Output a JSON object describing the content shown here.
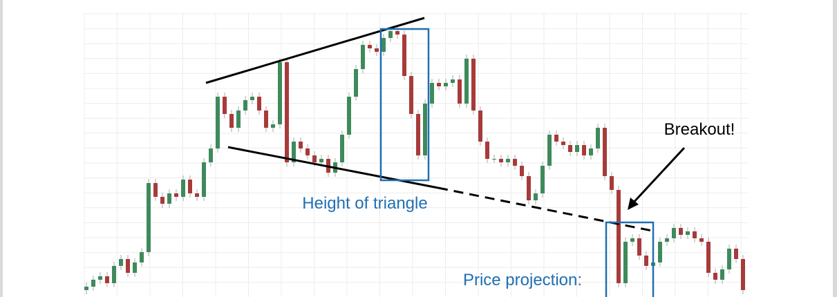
{
  "chart_data": {
    "type": "candlestick",
    "annotations": {
      "breakout": "Breakout!",
      "height": "Height of triangle",
      "projection": "Price projection:"
    },
    "ylim": [
      0,
      430
    ],
    "grid": true,
    "up_color": "#3e8a5c",
    "down_color": "#a83a3a",
    "open": [
      10,
      15,
      25,
      30,
      20,
      45,
      55,
      35,
      50,
      65,
      165,
      145,
      135,
      150,
      145,
      170,
      150,
      145,
      195,
      215,
      290,
      265,
      245,
      270,
      285,
      290,
      270,
      245,
      250,
      340,
      195,
      225,
      215,
      205,
      195,
      200,
      180,
      195,
      235,
      290,
      330,
      365,
      360,
      355,
      375,
      385,
      380,
      320,
      265,
      205,
      280,
      310,
      305,
      310,
      315,
      280,
      345,
      270,
      225,
      200,
      200,
      195,
      200,
      190,
      175,
      140,
      150,
      190,
      235,
      225,
      220,
      210,
      220,
      205,
      215,
      245,
      175,
      155,
      20,
      80,
      85,
      60,
      45,
      50,
      80,
      85,
      100,
      90,
      95,
      85,
      80,
      35,
      25,
      40,
      70,
      55
    ],
    "high": [
      21,
      31,
      36,
      36,
      51,
      61,
      61,
      56,
      71,
      171,
      171,
      151,
      156,
      156,
      176,
      176,
      156,
      201,
      221,
      296,
      296,
      271,
      276,
      291,
      296,
      296,
      276,
      256,
      346,
      346,
      231,
      231,
      221,
      211,
      206,
      206,
      201,
      241,
      296,
      336,
      371,
      371,
      366,
      381,
      391,
      391,
      386,
      326,
      271,
      286,
      316,
      316,
      316,
      321,
      321,
      351,
      351,
      276,
      231,
      206,
      206,
      206,
      206,
      196,
      181,
      156,
      196,
      241,
      241,
      231,
      226,
      226,
      226,
      221,
      251,
      251,
      181,
      161,
      86,
      91,
      91,
      66,
      56,
      86,
      91,
      106,
      106,
      101,
      101,
      91,
      86,
      41,
      46,
      76,
      76,
      61
    ],
    "low": [
      4,
      9,
      19,
      14,
      14,
      39,
      29,
      29,
      44,
      59,
      139,
      129,
      129,
      139,
      139,
      144,
      139,
      139,
      189,
      209,
      259,
      239,
      239,
      264,
      279,
      264,
      239,
      239,
      244,
      189,
      189,
      209,
      199,
      189,
      189,
      174,
      174,
      189,
      229,
      284,
      324,
      354,
      349,
      349,
      369,
      374,
      314,
      259,
      199,
      199,
      274,
      299,
      299,
      304,
      274,
      274,
      264,
      219,
      194,
      194,
      189,
      189,
      184,
      169,
      134,
      134,
      144,
      184,
      219,
      214,
      204,
      204,
      199,
      199,
      209,
      169,
      149,
      14,
      14,
      74,
      54,
      39,
      39,
      44,
      74,
      79,
      84,
      84,
      79,
      74,
      29,
      19,
      19,
      34,
      49,
      4
    ],
    "close": [
      15,
      25,
      30,
      20,
      45,
      55,
      35,
      50,
      65,
      165,
      145,
      135,
      150,
      145,
      170,
      150,
      145,
      195,
      215,
      290,
      265,
      245,
      270,
      285,
      290,
      270,
      245,
      250,
      340,
      195,
      225,
      215,
      205,
      195,
      200,
      180,
      195,
      235,
      290,
      330,
      365,
      360,
      355,
      375,
      385,
      380,
      320,
      265,
      205,
      280,
      310,
      305,
      310,
      315,
      280,
      345,
      270,
      225,
      200,
      200,
      195,
      200,
      190,
      175,
      140,
      150,
      190,
      235,
      225,
      220,
      210,
      220,
      205,
      215,
      245,
      175,
      155,
      20,
      80,
      85,
      60,
      45,
      50,
      80,
      85,
      100,
      90,
      95,
      85,
      80,
      35,
      25,
      40,
      70,
      55,
      10
    ]
  }
}
